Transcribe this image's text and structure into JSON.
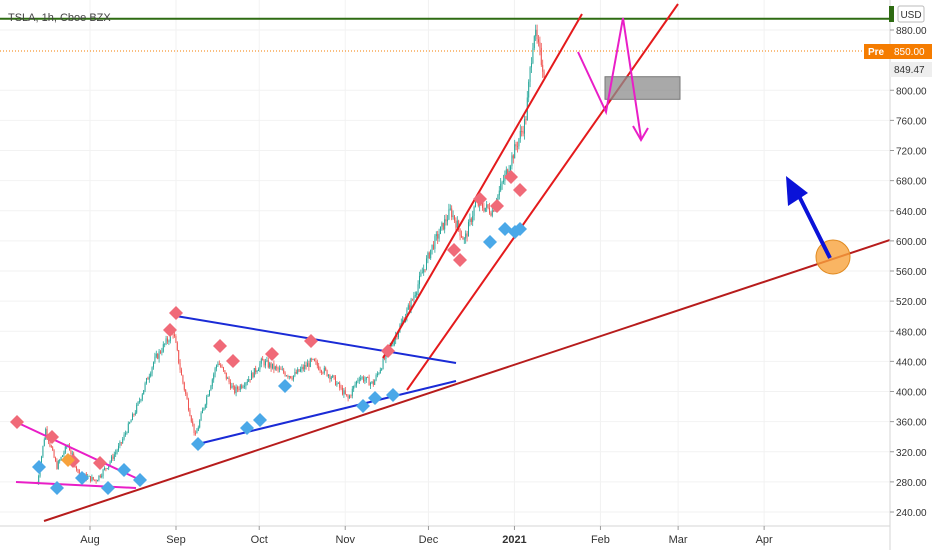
{
  "header": {
    "symbol_line": "TSLA, 1h, Cboe BZX"
  },
  "price_axis": {
    "currency": "USD"
  },
  "badges": {
    "pre_label": "Pre",
    "pre_value": "850.00",
    "last_value": "849.47"
  },
  "colors": {
    "up_candle": "#26a69a",
    "down_candle": "#ef5350",
    "channel": "#e41a1c",
    "main_trendline": "#b71c1c",
    "triangle": "#1a2bd6",
    "wedge": "#e91ec7",
    "projection_arrow": "#e91ec7",
    "breakout_arrow": "#0a12d8",
    "highlight_circle": "#f7a23c",
    "supply_zone": "#8c8c8c",
    "resistance_line": "#2e6b12",
    "pre_badge": "#f57c00",
    "sell_marker": "#f06a78",
    "buy_marker": "#4aa8e8"
  },
  "chart_data": {
    "type": "line",
    "title": "TSLA, 1h, Cboe BZX",
    "ylim": [
      220,
      900
    ],
    "y_ticks": [
      "240.00",
      "280.00",
      "320.00",
      "360.00",
      "400.00",
      "440.00",
      "480.00",
      "520.00",
      "560.00",
      "600.00",
      "640.00",
      "680.00",
      "720.00",
      "760.00",
      "800.00",
      "880.00"
    ],
    "x_ticks": [
      "Aug",
      "Sep",
      "Oct",
      "Nov",
      "Dec",
      "2021",
      "Feb",
      "Mar",
      "Apr"
    ],
    "series": [
      {
        "x": [
          "2020-07-13",
          "2020-07-16",
          "2020-07-20",
          "2020-07-24",
          "2020-07-28",
          "2020-08-03",
          "2020-08-07",
          "2020-08-12",
          "2020-08-18",
          "2020-08-24",
          "2020-08-31",
          "2020-09-03",
          "2020-09-08",
          "2020-09-11",
          "2020-09-16",
          "2020-09-22",
          "2020-09-28",
          "2020-10-02",
          "2020-10-07",
          "2020-10-13",
          "2020-10-20",
          "2020-10-27",
          "2020-11-02",
          "2020-11-06",
          "2020-11-11",
          "2020-11-16",
          "2020-11-20",
          "2020-11-25",
          "2020-12-02",
          "2020-12-09",
          "2020-12-14",
          "2020-12-18",
          "2020-12-24",
          "2020-12-31",
          "2021-01-05",
          "2021-01-08",
          "2021-01-12"
        ],
        "values": [
          278,
          350,
          300,
          330,
          290,
          282,
          300,
          330,
          380,
          440,
          480,
          420,
          340,
          380,
          440,
          400,
          420,
          440,
          430,
          420,
          440,
          420,
          390,
          420,
          410,
          450,
          480,
          520,
          590,
          640,
          600,
          650,
          640,
          710,
          760,
          880,
          820
        ]
      }
    ],
    "markers": {
      "sell_count": 17,
      "buy_count": 17,
      "neutral_count": 1
    },
    "levels": {
      "resistance": 895,
      "supply_zone": [
        780,
        810
      ]
    }
  }
}
